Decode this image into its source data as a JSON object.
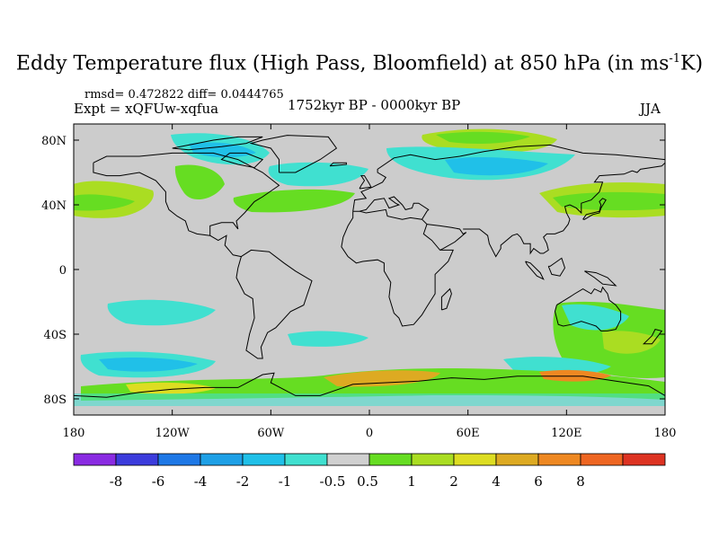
{
  "title": {
    "main": "Eddy Temperature flux (High Pass, Bloomfield) at 850 hPa (in ms",
    "sup": "-1",
    "tail": "K)"
  },
  "subtitle": {
    "stats": "rmsd= 0.472822 diff= 0.0444765",
    "experiment": "Expt = xQFUw-xqfua",
    "period": "1752kyr BP - 0000kyr BP",
    "season": "JJA"
  },
  "map": {
    "lon_range": [
      -180,
      180
    ],
    "lat_range": [
      -90,
      90
    ],
    "background_color": "#cccccc",
    "lat_ticks": [
      {
        "value": 80,
        "label": "80N"
      },
      {
        "value": 40,
        "label": "40N"
      },
      {
        "value": 0,
        "label": "0"
      },
      {
        "value": -40,
        "label": "40S"
      },
      {
        "value": -80,
        "label": "80S"
      }
    ],
    "lon_ticks": [
      {
        "value": -180,
        "label": "180"
      },
      {
        "value": -120,
        "label": "120W"
      },
      {
        "value": -60,
        "label": "60W"
      },
      {
        "value": 0,
        "label": "0"
      },
      {
        "value": 60,
        "label": "60E"
      },
      {
        "value": 120,
        "label": "120E"
      },
      {
        "value": 180,
        "label": "180"
      }
    ]
  },
  "colorbar": {
    "colors": [
      "#8a2be2",
      "#3c3cdc",
      "#1e78e6",
      "#1ea0e6",
      "#20c0e8",
      "#40e0d0",
      "#d0d0d0",
      "#66dd22",
      "#aadd22",
      "#dddd22",
      "#ddaa22",
      "#ee8822",
      "#ee6622",
      "#dd3322"
    ],
    "labels": [
      "-8",
      "-6",
      "-4",
      "-2",
      "-1",
      "-0.5",
      "0.5",
      "1",
      "2",
      "4",
      "6",
      "8"
    ]
  }
}
